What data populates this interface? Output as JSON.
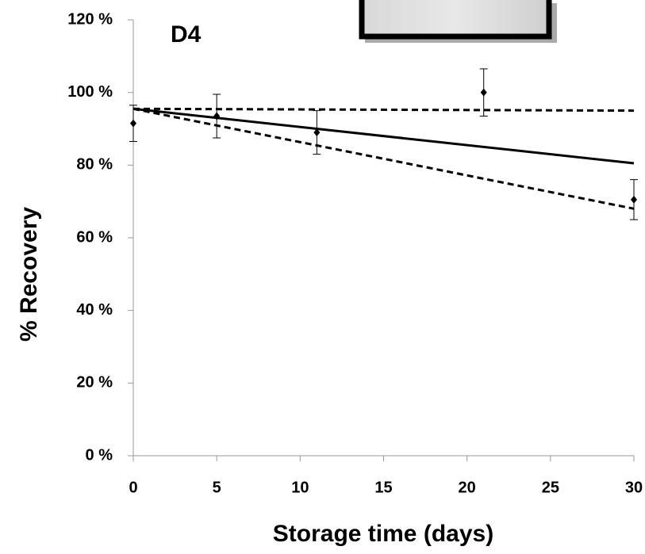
{
  "chart_data": {
    "type": "scatter",
    "panel_label": "D4",
    "x_label": "Storage time (days)",
    "y_label": "% Recovery",
    "xlim": [
      0,
      30
    ],
    "ylim": [
      0,
      120
    ],
    "xticks": [
      0,
      5,
      10,
      15,
      20,
      25,
      30
    ],
    "yticks": [
      {
        "value": 0,
        "label": "0 %"
      },
      {
        "value": 20,
        "label": "20 %"
      },
      {
        "value": 40,
        "label": "40 %"
      },
      {
        "value": 60,
        "label": "60 %"
      },
      {
        "value": 80,
        "label": "80 %"
      },
      {
        "value": 100,
        "label": "100 %"
      },
      {
        "value": 120,
        "label": "120 %"
      }
    ],
    "points": {
      "color": "#000000",
      "x": [
        0,
        5,
        11,
        21,
        30
      ],
      "values": [
        91.5,
        93.5,
        89,
        100,
        70.5
      ],
      "errors": [
        5,
        6,
        6,
        6.5,
        5.5
      ]
    },
    "fit_lines": [
      {
        "color": "#000000",
        "dashed": false,
        "x": [
          0,
          30
        ],
        "values": [
          95.5,
          80.5
        ]
      },
      {
        "color": "#000000",
        "dashed": true,
        "x": [
          0,
          30
        ],
        "values": [
          95.5,
          95
        ]
      },
      {
        "color": "#000000",
        "dashed": true,
        "x": [
          0,
          30
        ],
        "values": [
          95.5,
          68
        ]
      }
    ]
  }
}
